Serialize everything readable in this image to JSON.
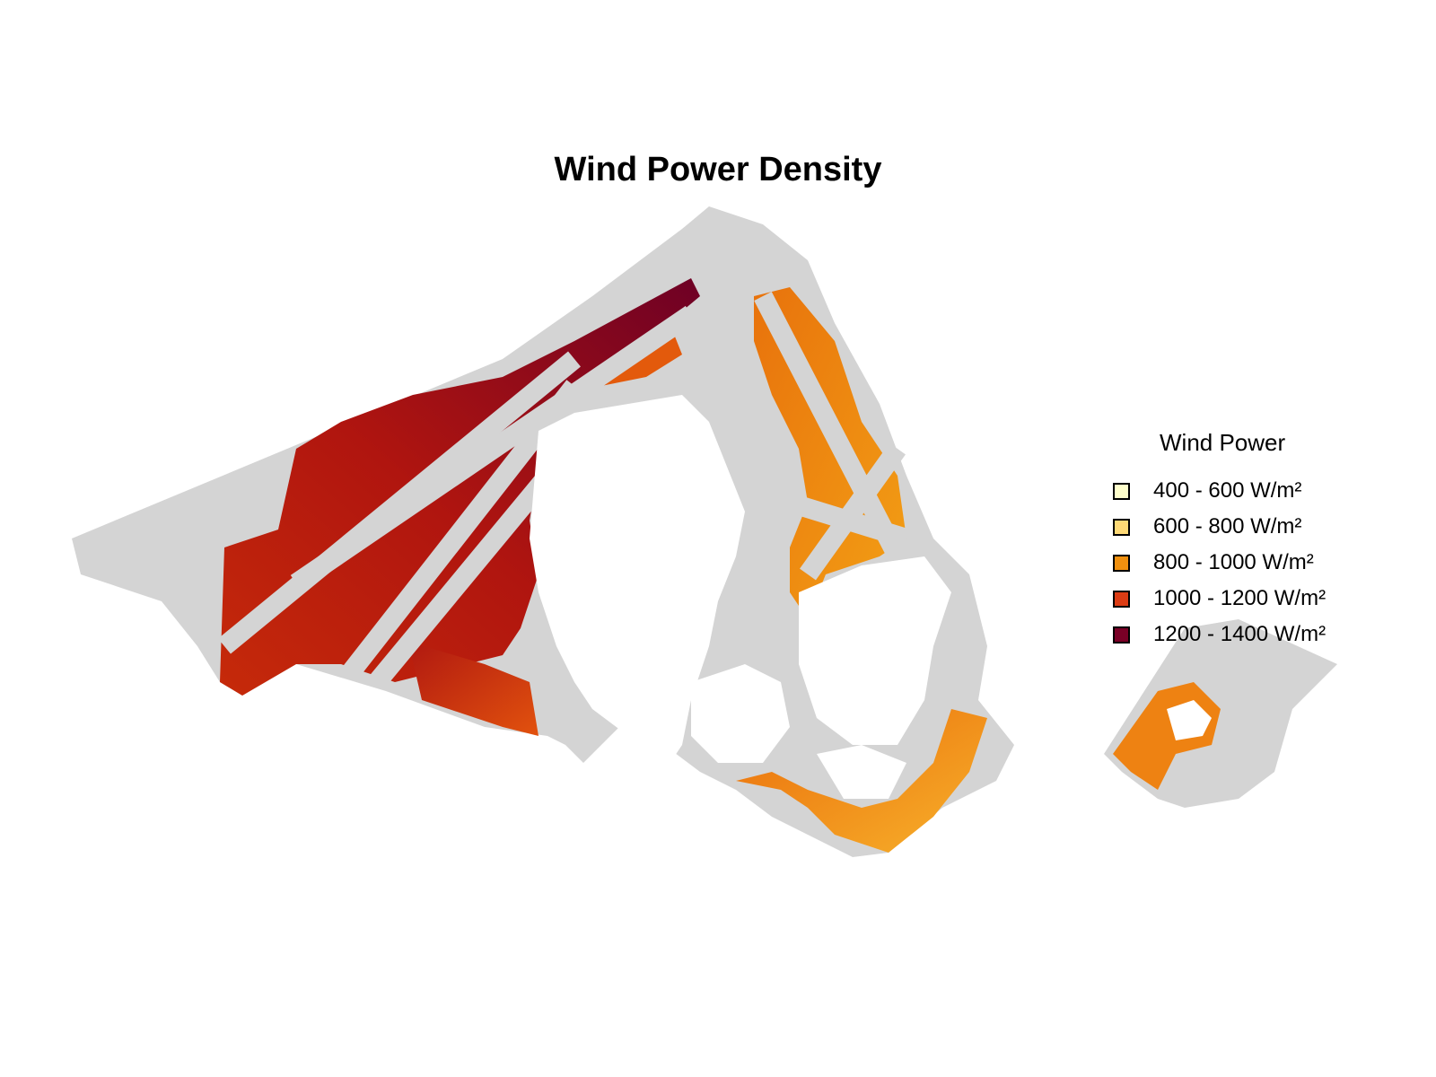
{
  "title": "Wind Power Density",
  "legend": {
    "title": "Wind Power",
    "items": [
      {
        "label": "400 - 600 W/m²",
        "color": "#ffffcc"
      },
      {
        "label": "600 - 800 W/m²",
        "color": "#fed976"
      },
      {
        "label": "800 - 1000 W/m²",
        "color": "#f0900f"
      },
      {
        "label": "1000 - 1200 W/m²",
        "color": "#dc3c14"
      },
      {
        "label": "1200 - 1400 W/m²",
        "color": "#7a0026"
      }
    ]
  },
  "colors": {
    "excluded_area": "#d4d4d4",
    "land": "#ffffff",
    "background": "#ffffff"
  }
}
